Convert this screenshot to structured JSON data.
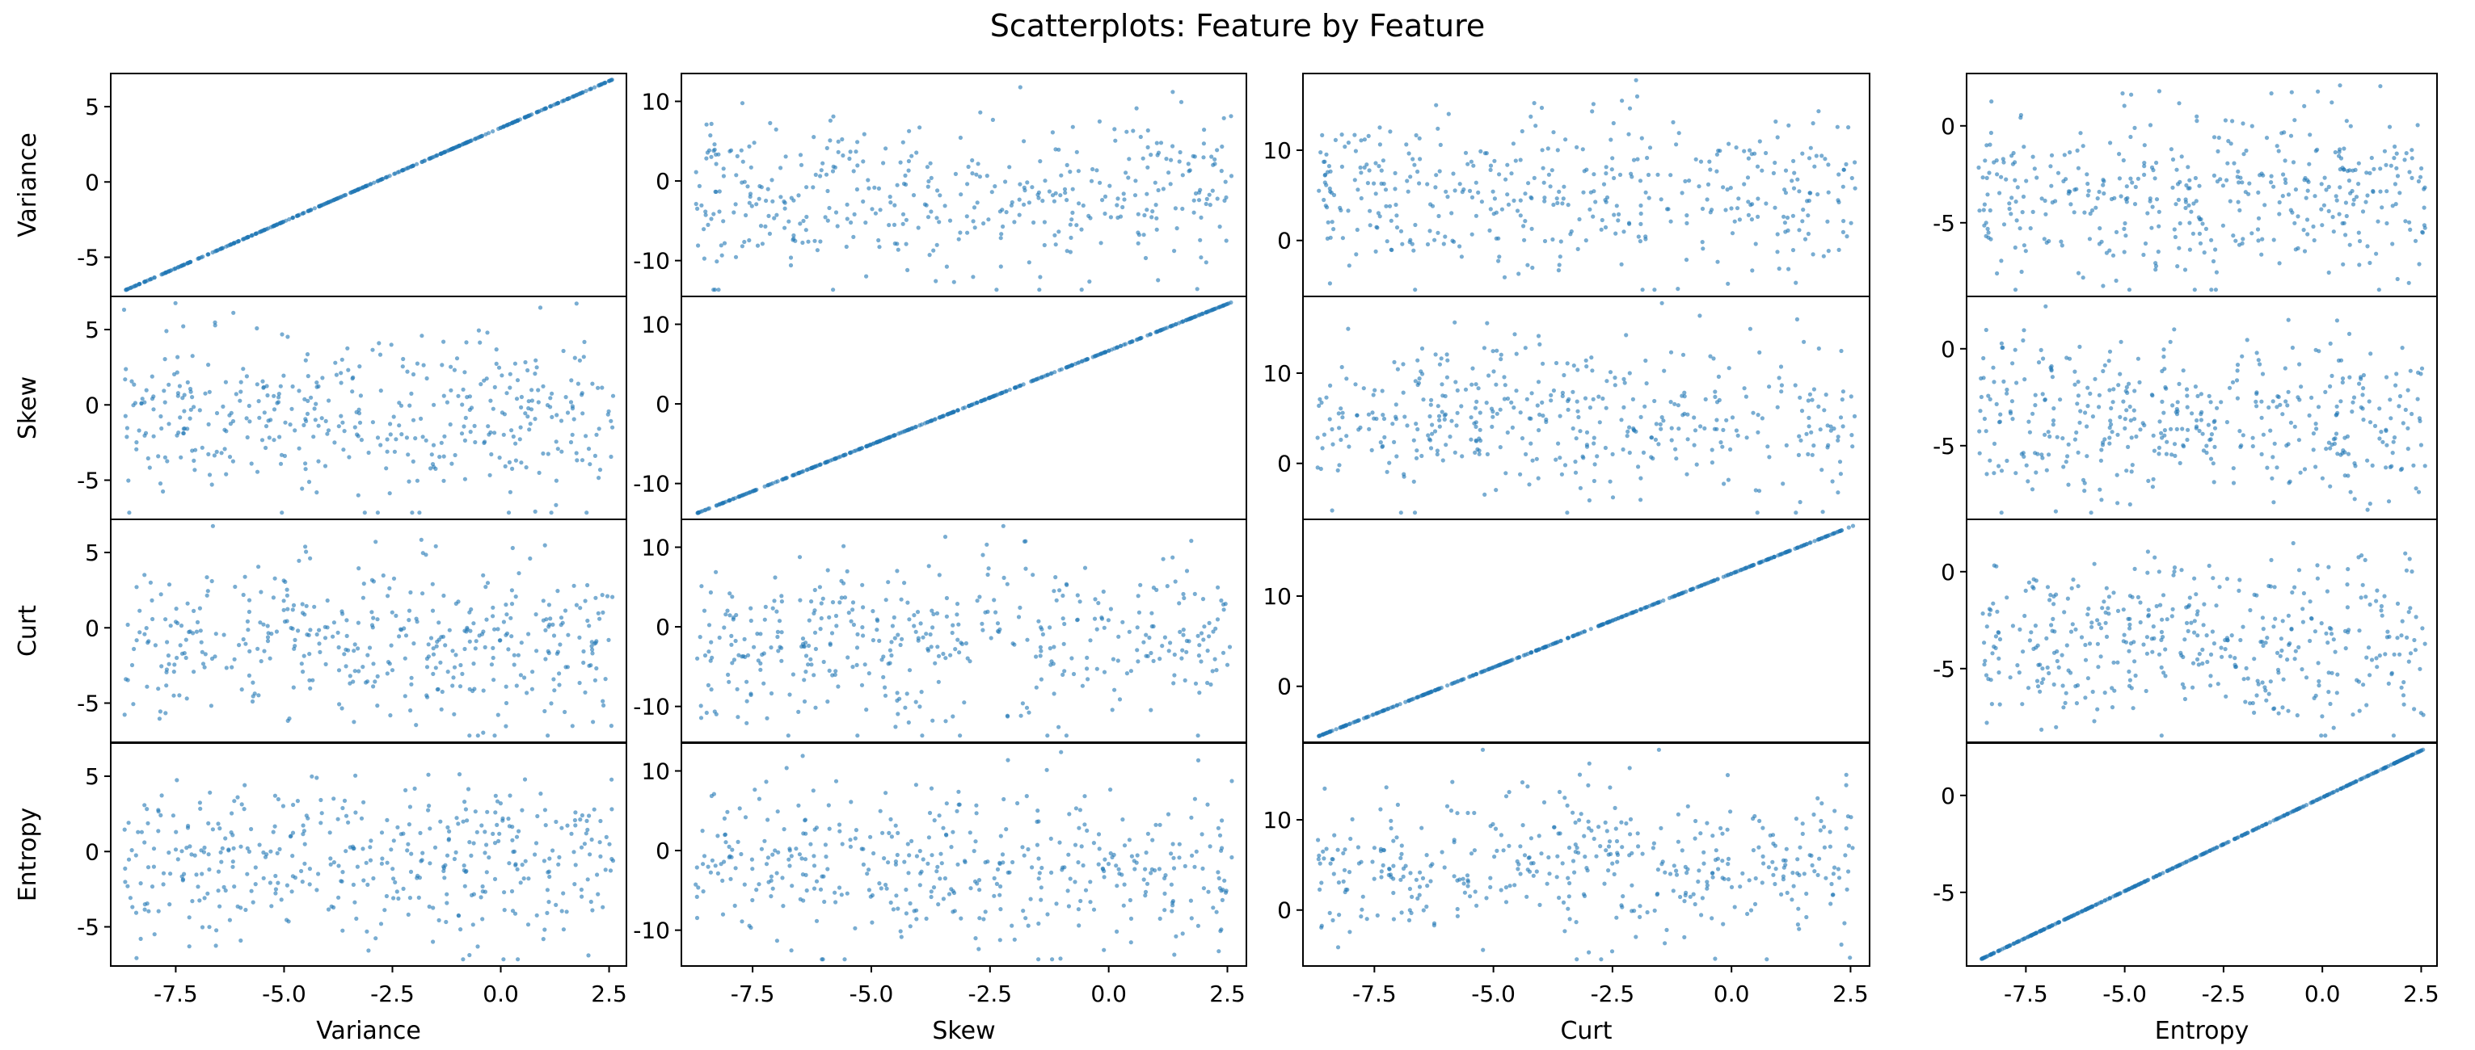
{
  "figure": {
    "title": "Scatterplots: Feature by Feature",
    "features": [
      "Variance",
      "Skew",
      "Curt",
      "Entropy"
    ]
  },
  "colors": {
    "point": "#1f77b4",
    "axis": "#000000"
  },
  "chart_data": {
    "type": "scatter",
    "title": "Scatterplots: Feature by Feature",
    "layout": "4x4 scatter matrix (rows = y feature, columns = x feature)",
    "row_labels": [
      "Variance",
      "Skew",
      "Curt",
      "Entropy"
    ],
    "column_labels": [
      "Variance",
      "Skew",
      "Curt",
      "Entropy"
    ],
    "shared_x_ticks": [
      "-7.5",
      "-5.0",
      "-2.5",
      "0.0",
      "2.5"
    ],
    "xlim": [
      -9.0,
      2.9
    ],
    "row_ylims": {
      "Variance": [
        -7.6,
        7.2
      ],
      "Skew": [
        -14.5,
        13.5
      ],
      "Curt": [
        -6.2,
        18.5
      ],
      "Entropy": [
        -8.8,
        2.7
      ]
    },
    "row_y_ticks": {
      "Variance": [
        "5",
        "0",
        "-5"
      ],
      "Skew": [
        "10",
        "0",
        "-10"
      ],
      "Curt": [
        "10",
        "0"
      ],
      "Entropy": [
        "0",
        "-5"
      ]
    },
    "panels_by_column_y_ticks": [
      {
        "column": "Variance",
        "ylim": [
          -7.6,
          7.2
        ],
        "ticks": [
          "5",
          "0",
          "-5"
        ]
      },
      {
        "column": "Skew",
        "ylim": [
          -14.5,
          13.5
        ],
        "ticks": [
          "10",
          "0",
          "-10"
        ]
      },
      {
        "column": "Curt",
        "ylim": [
          -6.2,
          18.5
        ],
        "ticks": [
          "10",
          "0"
        ]
      },
      {
        "column": "Entropy",
        "ylim": [
          -8.8,
          2.7
        ],
        "ticks": [
          "0",
          "-5"
        ]
      }
    ],
    "diagonal": "x equals y (points fall on a straight line)",
    "grid": false,
    "legend": "none"
  }
}
